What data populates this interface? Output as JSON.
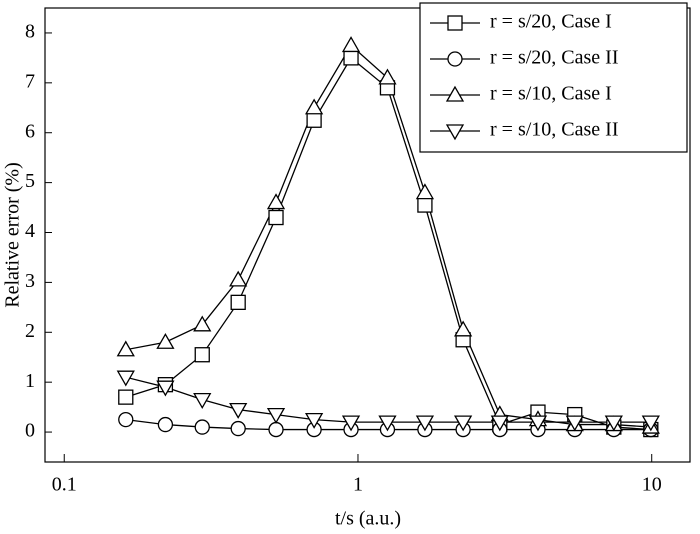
{
  "chart_data": {
    "type": "line",
    "x_label": "t/s (a.u.)",
    "y_label": "Relative error (%)",
    "x": [
      0.162,
      0.221,
      0.295,
      0.391,
      0.526,
      0.709,
      0.947,
      1.26,
      1.69,
      2.28,
      3.04,
      4.1,
      5.47,
      7.43,
      9.93
    ],
    "series": [
      {
        "name": "r = s/20, Case I",
        "marker": "square",
        "color": "#000000",
        "values": [
          0.7,
          0.95,
          1.55,
          2.6,
          4.3,
          6.25,
          7.5,
          6.9,
          4.55,
          1.85,
          0.15,
          0.4,
          0.35,
          0.1,
          0.05
        ]
      },
      {
        "name": "r = s/20, Case II",
        "marker": "circle",
        "color": "#000000",
        "values": [
          0.25,
          0.15,
          0.1,
          0.07,
          0.05,
          0.05,
          0.05,
          0.05,
          0.05,
          0.05,
          0.05,
          0.05,
          0.05,
          0.05,
          0.05
        ]
      },
      {
        "name": "r = s/10, Case I",
        "marker": "triangle-up",
        "color": "#000000",
        "values": [
          1.65,
          1.8,
          2.15,
          3.05,
          4.6,
          6.5,
          7.75,
          7.1,
          4.8,
          2.05,
          0.35,
          0.25,
          0.15,
          0.15,
          0.1
        ]
      },
      {
        "name": "r = s/10, Case II",
        "marker": "triangle-down",
        "color": "#000000",
        "values": [
          1.1,
          0.9,
          0.65,
          0.45,
          0.35,
          0.25,
          0.2,
          0.2,
          0.2,
          0.2,
          0.2,
          0.2,
          0.2,
          0.2,
          0.2
        ]
      }
    ],
    "x_log": true,
    "xlim": [
      0.086,
      13.5
    ],
    "xticks": [
      0.1,
      1,
      10
    ],
    "ylim": [
      -0.6,
      8.5
    ],
    "yticks": [
      0,
      1,
      2,
      3,
      4,
      5,
      6,
      7,
      8
    ],
    "legend": "upper right"
  }
}
